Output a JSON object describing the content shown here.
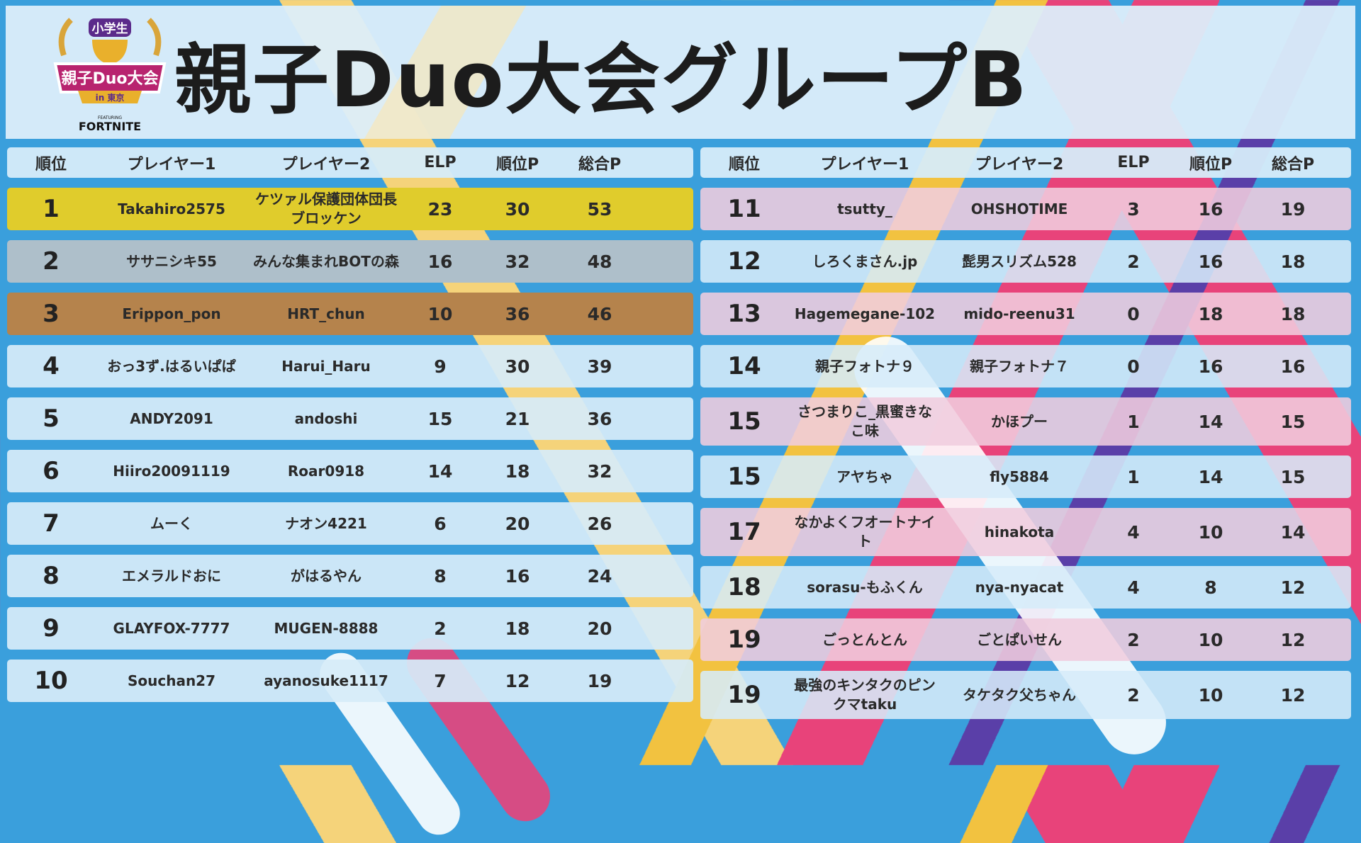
{
  "header": {
    "title": "親子Duo大会グループB",
    "logo": {
      "top": "小学生",
      "main": "親子Duo大会",
      "sub": "in 東京",
      "featuring": "FEATURING",
      "brand": "FORTNITE"
    }
  },
  "columns": [
    "順位",
    "プレイヤー1",
    "プレイヤー2",
    "ELP",
    "順位P",
    "総合P"
  ],
  "left_rows": [
    {
      "rank": "1",
      "p1": "Takahiro2575",
      "p2": "ケツァル保護団体団長ブロッケン",
      "elp": "23",
      "rp": "30",
      "tp": "53",
      "style": "gold"
    },
    {
      "rank": "2",
      "p1": "ササニシキ55",
      "p2": "みんな集まれBOTの森",
      "elp": "16",
      "rp": "32",
      "tp": "48",
      "style": "silver"
    },
    {
      "rank": "3",
      "p1": "Erippon_pon",
      "p2": "HRT_chun",
      "elp": "10",
      "rp": "36",
      "tp": "46",
      "style": "bronze"
    },
    {
      "rank": "4",
      "p1": "おっ3ず.はるいぱぱ",
      "p2": "Harui_Haru",
      "elp": "9",
      "rp": "30",
      "tp": "39"
    },
    {
      "rank": "5",
      "p1": "ANDY2091",
      "p2": "andoshi",
      "elp": "15",
      "rp": "21",
      "tp": "36"
    },
    {
      "rank": "6",
      "p1": "Hiiro20091119",
      "p2": "Roar0918",
      "elp": "14",
      "rp": "18",
      "tp": "32"
    },
    {
      "rank": "7",
      "p1": "ムーく",
      "p2": "ナオン4221",
      "elp": "6",
      "rp": "20",
      "tp": "26"
    },
    {
      "rank": "8",
      "p1": "エメラルドおに",
      "p2": "がはるやん",
      "elp": "8",
      "rp": "16",
      "tp": "24"
    },
    {
      "rank": "9",
      "p1": "GLAYFOX-7777",
      "p2": "MUGEN-8888",
      "elp": "2",
      "rp": "18",
      "tp": "20"
    },
    {
      "rank": "10",
      "p1": "Souchan27",
      "p2": "ayanosuke1117",
      "elp": "7",
      "rp": "12",
      "tp": "19"
    }
  ],
  "right_rows": [
    {
      "rank": "11",
      "p1": "tsutty_",
      "p2": "OHSHOTIME",
      "elp": "3",
      "rp": "16",
      "tp": "19"
    },
    {
      "rank": "12",
      "p1": "しろくまさん.jp",
      "p2": "髭男スリズム528",
      "elp": "2",
      "rp": "16",
      "tp": "18"
    },
    {
      "rank": "13",
      "p1": "Hagemegane-102",
      "p2": "mido-reenu31",
      "elp": "0",
      "rp": "18",
      "tp": "18"
    },
    {
      "rank": "14",
      "p1": "親子フォトナ９",
      "p2": "親子フォトナ７",
      "elp": "0",
      "rp": "16",
      "tp": "16"
    },
    {
      "rank": "15",
      "p1": "さつまりこ_黒蜜きなこ味",
      "p2": "かほプー",
      "elp": "1",
      "rp": "14",
      "tp": "15",
      "style": "tall"
    },
    {
      "rank": "15",
      "p1": "アヤちゃ",
      "p2": "fly5884",
      "elp": "1",
      "rp": "14",
      "tp": "15"
    },
    {
      "rank": "17",
      "p1": "なかよくフオートナイト",
      "p2": "hinakota",
      "elp": "4",
      "rp": "10",
      "tp": "14",
      "style": "tall"
    },
    {
      "rank": "18",
      "p1": "sorasu-もふくん",
      "p2": "nya-nyacat",
      "elp": "4",
      "rp": "8",
      "tp": "12"
    },
    {
      "rank": "19",
      "p1": "ごっとんとん",
      "p2": "ごとぱいせん",
      "elp": "2",
      "rp": "10",
      "tp": "12"
    },
    {
      "rank": "19",
      "p1": "最強のキンタクのピンクマtaku",
      "p2": "タケタク父ちゃん",
      "elp": "2",
      "rp": "10",
      "tp": "12",
      "style": "tall"
    }
  ]
}
